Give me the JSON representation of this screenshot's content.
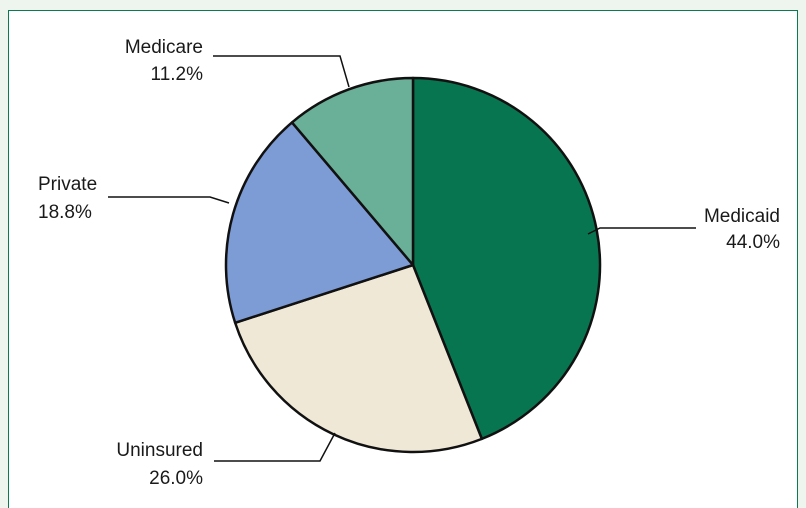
{
  "chart_data": {
    "type": "pie",
    "title": "",
    "slices": [
      {
        "name": "Medicaid",
        "value": 44.0,
        "label": "Medicaid",
        "value_label": "44.0%",
        "color": "#077550"
      },
      {
        "name": "Uninsured",
        "value": 26.0,
        "label": "Uninsured",
        "value_label": "26.0%",
        "color": "#efe8d6"
      },
      {
        "name": "Private",
        "value": 18.8,
        "label": "Private",
        "value_label": "18.8%",
        "color": "#7d9bd4"
      },
      {
        "name": "Medicare",
        "value": 11.2,
        "label": "Medicare",
        "value_label": "11.2%",
        "color": "#6aaf98"
      }
    ],
    "start_angle": "12 o'clock",
    "direction": "clockwise",
    "legend": "none"
  },
  "colors": {
    "frame_background": "#eef5ee",
    "frame_border": "#0b7a52",
    "slice_outline": "#111111"
  }
}
